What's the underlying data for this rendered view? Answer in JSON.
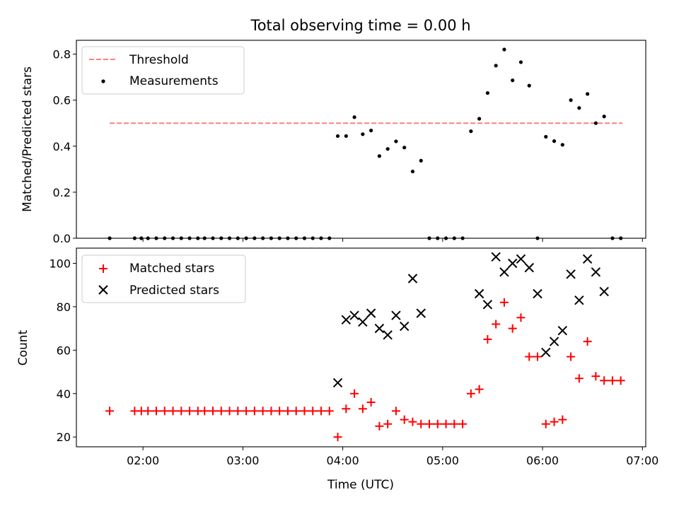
{
  "chart_data": [
    {
      "type": "scatter",
      "panel": "top",
      "title": "Total observing time = 0.00 h",
      "xlabel": "",
      "ylabel": "Matched/Predicted stars",
      "xlim": [
        "01:20",
        "07:02"
      ],
      "ylim": [
        0,
        0.86
      ],
      "yticks": [
        0.0,
        0.2,
        0.4,
        0.6,
        0.8
      ],
      "ytick_labels": [
        "0.0",
        "0.2",
        "0.4",
        "0.6",
        "0.8"
      ],
      "xticks": [
        "02:00",
        "03:00",
        "04:00",
        "05:00",
        "06:00",
        "07:00"
      ],
      "grid": false,
      "legend_position": "top-left",
      "series": [
        {
          "name": "Threshold",
          "kind": "dashed-line",
          "color": "#ff7f7f",
          "x": [
            "01:40",
            "06:48"
          ],
          "y": [
            0.5,
            0.5
          ]
        },
        {
          "name": "Measurements",
          "kind": "points",
          "color": "#000000",
          "x": [
            "01:40",
            "01:55",
            "01:59",
            "02:03",
            "02:08",
            "02:13",
            "02:18",
            "02:23",
            "02:28",
            "02:33",
            "02:37",
            "02:42",
            "02:47",
            "02:52",
            "02:57",
            "03:02",
            "03:07",
            "03:12",
            "03:17",
            "03:22",
            "03:27",
            "03:32",
            "03:37",
            "03:42",
            "03:47",
            "03:52",
            "03:57",
            "04:02",
            "04:07",
            "04:12",
            "04:17",
            "04:22",
            "04:27",
            "04:32",
            "04:37",
            "04:42",
            "04:47",
            "04:52",
            "04:57",
            "05:02",
            "05:07",
            "05:12",
            "05:17",
            "05:22",
            "05:27",
            "05:32",
            "05:37",
            "05:42",
            "05:47",
            "05:52",
            "05:57",
            "06:02",
            "06:07",
            "06:12",
            "06:17",
            "06:22",
            "06:27",
            "06:32",
            "06:37",
            "06:42",
            "06:47"
          ],
          "y": [
            0,
            0,
            0,
            0,
            0,
            0,
            0,
            0,
            0,
            0,
            0,
            0,
            0,
            0,
            0,
            0,
            0,
            0,
            0,
            0,
            0,
            0,
            0,
            0,
            0,
            0,
            0.444,
            0.444,
            0.526,
            0.452,
            0.468,
            0.357,
            0.388,
            0.421,
            0.394,
            0.29,
            0.337,
            0,
            0,
            0,
            0,
            0,
            0.465,
            0.519,
            0.631,
            0.75,
            0.82,
            0.686,
            0.765,
            0.663,
            0,
            0.441,
            0.422,
            0.406,
            0.6,
            0.566,
            0.627,
            0.5,
            0.529,
            0,
            0
          ]
        }
      ]
    },
    {
      "type": "scatter",
      "panel": "bottom",
      "title": "",
      "xlabel": "Time (UTC)",
      "ylabel": "Count",
      "xlim": [
        "01:20",
        "07:02"
      ],
      "ylim": [
        15.5,
        107
      ],
      "yticks": [
        20,
        40,
        60,
        80,
        100
      ],
      "ytick_labels": [
        "20",
        "40",
        "60",
        "80",
        "100"
      ],
      "xticks": [
        "02:00",
        "03:00",
        "04:00",
        "05:00",
        "06:00",
        "07:00"
      ],
      "xtick_labels": [
        "02:00",
        "03:00",
        "04:00",
        "05:00",
        "06:00",
        "07:00"
      ],
      "grid": false,
      "legend_position": "top-left",
      "series": [
        {
          "name": "Matched stars",
          "kind": "plus",
          "color": "#ff0000",
          "x": [
            "01:40",
            "01:55",
            "01:59",
            "02:03",
            "02:08",
            "02:13",
            "02:18",
            "02:23",
            "02:28",
            "02:33",
            "02:37",
            "02:42",
            "02:47",
            "02:52",
            "02:57",
            "03:02",
            "03:07",
            "03:12",
            "03:17",
            "03:22",
            "03:27",
            "03:32",
            "03:37",
            "03:42",
            "03:47",
            "03:52",
            "03:57",
            "04:02",
            "04:07",
            "04:12",
            "04:17",
            "04:22",
            "04:27",
            "04:32",
            "04:37",
            "04:42",
            "04:47",
            "04:52",
            "04:57",
            "05:02",
            "05:07",
            "05:12",
            "05:17",
            "05:22",
            "05:27",
            "05:32",
            "05:37",
            "05:42",
            "05:47",
            "05:52",
            "05:57",
            "06:02",
            "06:07",
            "06:12",
            "06:17",
            "06:22",
            "06:27",
            "06:32",
            "06:37",
            "06:42",
            "06:47"
          ],
          "y": [
            32,
            32,
            32,
            32,
            32,
            32,
            32,
            32,
            32,
            32,
            32,
            32,
            32,
            32,
            32,
            32,
            32,
            32,
            32,
            32,
            32,
            32,
            32,
            32,
            32,
            32,
            20,
            33,
            40,
            33,
            36,
            25,
            26,
            32,
            28,
            27,
            26,
            26,
            26,
            26,
            26,
            26,
            40,
            42,
            65,
            72,
            82,
            70,
            75,
            57,
            57,
            26,
            27,
            28,
            57,
            47,
            64,
            48,
            46,
            46,
            46
          ]
        },
        {
          "name": "Predicted stars",
          "kind": "cross",
          "color": "#000000",
          "x": [
            "03:57",
            "04:02",
            "04:07",
            "04:12",
            "04:17",
            "04:22",
            "04:27",
            "04:32",
            "04:37",
            "04:42",
            "04:47",
            "05:22",
            "05:27",
            "05:32",
            "05:37",
            "05:42",
            "05:47",
            "05:52",
            "05:57",
            "06:02",
            "06:07",
            "06:12",
            "06:17",
            "06:22",
            "06:27",
            "06:32",
            "06:37"
          ],
          "y": [
            45,
            74,
            76,
            73,
            77,
            70,
            67,
            76,
            71,
            93,
            77,
            86,
            81,
            103,
            96,
            100,
            102,
            98,
            86,
            59,
            64,
            69,
            95,
            83,
            102,
            96,
            87
          ]
        }
      ]
    }
  ]
}
